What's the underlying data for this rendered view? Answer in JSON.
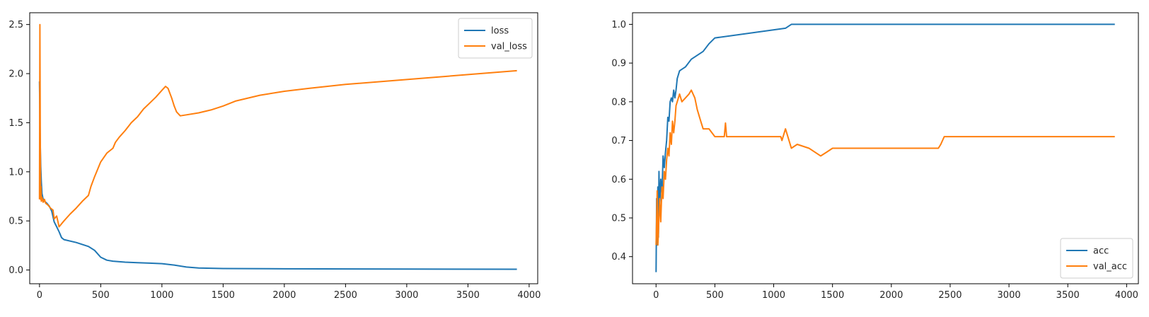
{
  "chart_data": [
    {
      "type": "line",
      "xlim": [
        -80,
        4070
      ],
      "ylim": [
        -0.14,
        2.62
      ],
      "xticks": [
        0,
        500,
        1000,
        1500,
        2000,
        2500,
        3000,
        3500,
        4000
      ],
      "yticks": [
        0.0,
        0.5,
        1.0,
        1.5,
        2.0,
        2.5
      ],
      "tick_decimals": 1,
      "legend_position": "top-right",
      "grid": false,
      "series": [
        {
          "name": "loss",
          "color": "#1f77b4",
          "points": [
            [
              0,
              1.92
            ],
            [
              5,
              1.35
            ],
            [
              10,
              1.05
            ],
            [
              15,
              0.9
            ],
            [
              20,
              0.78
            ],
            [
              30,
              0.72
            ],
            [
              40,
              0.7
            ],
            [
              60,
              0.68
            ],
            [
              80,
              0.65
            ],
            [
              100,
              0.6
            ],
            [
              120,
              0.49
            ],
            [
              140,
              0.44
            ],
            [
              160,
              0.39
            ],
            [
              180,
              0.33
            ],
            [
              200,
              0.31
            ],
            [
              300,
              0.28
            ],
            [
              400,
              0.24
            ],
            [
              450,
              0.2
            ],
            [
              500,
              0.13
            ],
            [
              550,
              0.1
            ],
            [
              600,
              0.09
            ],
            [
              700,
              0.08
            ],
            [
              800,
              0.075
            ],
            [
              900,
              0.07
            ],
            [
              1000,
              0.065
            ],
            [
              1100,
              0.05
            ],
            [
              1200,
              0.03
            ],
            [
              1300,
              0.02
            ],
            [
              1500,
              0.015
            ],
            [
              2000,
              0.012
            ],
            [
              3000,
              0.01
            ],
            [
              3900,
              0.008
            ]
          ]
        },
        {
          "name": "val_loss",
          "color": "#ff7f0e",
          "points": [
            [
              0,
              0.72
            ],
            [
              3,
              2.5
            ],
            [
              6,
              1.4
            ],
            [
              9,
              0.72
            ],
            [
              12,
              0.85
            ],
            [
              15,
              0.7
            ],
            [
              20,
              0.74
            ],
            [
              30,
              0.69
            ],
            [
              40,
              0.72
            ],
            [
              50,
              0.68
            ],
            [
              70,
              0.66
            ],
            [
              90,
              0.63
            ],
            [
              110,
              0.61
            ],
            [
              120,
              0.52
            ],
            [
              140,
              0.55
            ],
            [
              160,
              0.44
            ],
            [
              200,
              0.5
            ],
            [
              250,
              0.57
            ],
            [
              300,
              0.63
            ],
            [
              350,
              0.7
            ],
            [
              400,
              0.76
            ],
            [
              420,
              0.85
            ],
            [
              450,
              0.95
            ],
            [
              500,
              1.1
            ],
            [
              550,
              1.19
            ],
            [
              600,
              1.24
            ],
            [
              620,
              1.3
            ],
            [
              650,
              1.35
            ],
            [
              700,
              1.42
            ],
            [
              750,
              1.5
            ],
            [
              800,
              1.56
            ],
            [
              850,
              1.64
            ],
            [
              900,
              1.7
            ],
            [
              950,
              1.76
            ],
            [
              1000,
              1.83
            ],
            [
              1030,
              1.87
            ],
            [
              1050,
              1.85
            ],
            [
              1080,
              1.75
            ],
            [
              1100,
              1.67
            ],
            [
              1120,
              1.61
            ],
            [
              1150,
              1.57
            ],
            [
              1200,
              1.58
            ],
            [
              1300,
              1.6
            ],
            [
              1400,
              1.63
            ],
            [
              1500,
              1.67
            ],
            [
              1600,
              1.72
            ],
            [
              1800,
              1.78
            ],
            [
              2000,
              1.82
            ],
            [
              2200,
              1.85
            ],
            [
              2500,
              1.89
            ],
            [
              3000,
              1.94
            ],
            [
              3500,
              1.99
            ],
            [
              3900,
              2.03
            ]
          ]
        }
      ]
    },
    {
      "type": "line",
      "xlim": [
        -200,
        4100
      ],
      "ylim": [
        0.33,
        1.03
      ],
      "xticks": [
        0,
        500,
        1000,
        1500,
        2000,
        2500,
        3000,
        3500,
        4000
      ],
      "yticks": [
        0.4,
        0.5,
        0.6,
        0.7,
        0.8,
        0.9,
        1.0
      ],
      "tick_decimals": 1,
      "legend_position": "bottom-right",
      "grid": false,
      "series": [
        {
          "name": "acc",
          "color": "#1f77b4",
          "points": [
            [
              0,
              0.36
            ],
            [
              5,
              0.55
            ],
            [
              10,
              0.43
            ],
            [
              15,
              0.58
            ],
            [
              20,
              0.45
            ],
            [
              25,
              0.62
            ],
            [
              30,
              0.52
            ],
            [
              40,
              0.6
            ],
            [
              50,
              0.56
            ],
            [
              60,
              0.66
            ],
            [
              70,
              0.63
            ],
            [
              80,
              0.67
            ],
            [
              90,
              0.7
            ],
            [
              100,
              0.76
            ],
            [
              110,
              0.75
            ],
            [
              120,
              0.8
            ],
            [
              130,
              0.81
            ],
            [
              140,
              0.8
            ],
            [
              150,
              0.83
            ],
            [
              160,
              0.81
            ],
            [
              170,
              0.83
            ],
            [
              180,
              0.86
            ],
            [
              200,
              0.88
            ],
            [
              250,
              0.89
            ],
            [
              300,
              0.91
            ],
            [
              400,
              0.93
            ],
            [
              450,
              0.95
            ],
            [
              500,
              0.965
            ],
            [
              1100,
              0.99
            ],
            [
              1150,
              1.0
            ],
            [
              3900,
              1.0
            ]
          ]
        },
        {
          "name": "val_acc",
          "color": "#ff7f0e",
          "points": [
            [
              0,
              0.43
            ],
            [
              5,
              0.5
            ],
            [
              10,
              0.57
            ],
            [
              15,
              0.43
            ],
            [
              20,
              0.46
            ],
            [
              30,
              0.55
            ],
            [
              40,
              0.49
            ],
            [
              50,
              0.58
            ],
            [
              60,
              0.55
            ],
            [
              70,
              0.62
            ],
            [
              80,
              0.6
            ],
            [
              90,
              0.65
            ],
            [
              100,
              0.68
            ],
            [
              110,
              0.66
            ],
            [
              120,
              0.72
            ],
            [
              130,
              0.69
            ],
            [
              140,
              0.75
            ],
            [
              150,
              0.72
            ],
            [
              160,
              0.75
            ],
            [
              170,
              0.79
            ],
            [
              180,
              0.8
            ],
            [
              200,
              0.82
            ],
            [
              220,
              0.8
            ],
            [
              250,
              0.81
            ],
            [
              280,
              0.82
            ],
            [
              300,
              0.83
            ],
            [
              330,
              0.81
            ],
            [
              350,
              0.78
            ],
            [
              380,
              0.75
            ],
            [
              400,
              0.73
            ],
            [
              450,
              0.73
            ],
            [
              500,
              0.71
            ],
            [
              580,
              0.71
            ],
            [
              590,
              0.745
            ],
            [
              600,
              0.71
            ],
            [
              1060,
              0.71
            ],
            [
              1070,
              0.7
            ],
            [
              1100,
              0.73
            ],
            [
              1130,
              0.7
            ],
            [
              1150,
              0.68
            ],
            [
              1200,
              0.69
            ],
            [
              1300,
              0.68
            ],
            [
              1400,
              0.66
            ],
            [
              1450,
              0.67
            ],
            [
              1500,
              0.68
            ],
            [
              2400,
              0.68
            ],
            [
              2420,
              0.69
            ],
            [
              2450,
              0.71
            ],
            [
              3900,
              0.71
            ]
          ]
        }
      ]
    }
  ]
}
